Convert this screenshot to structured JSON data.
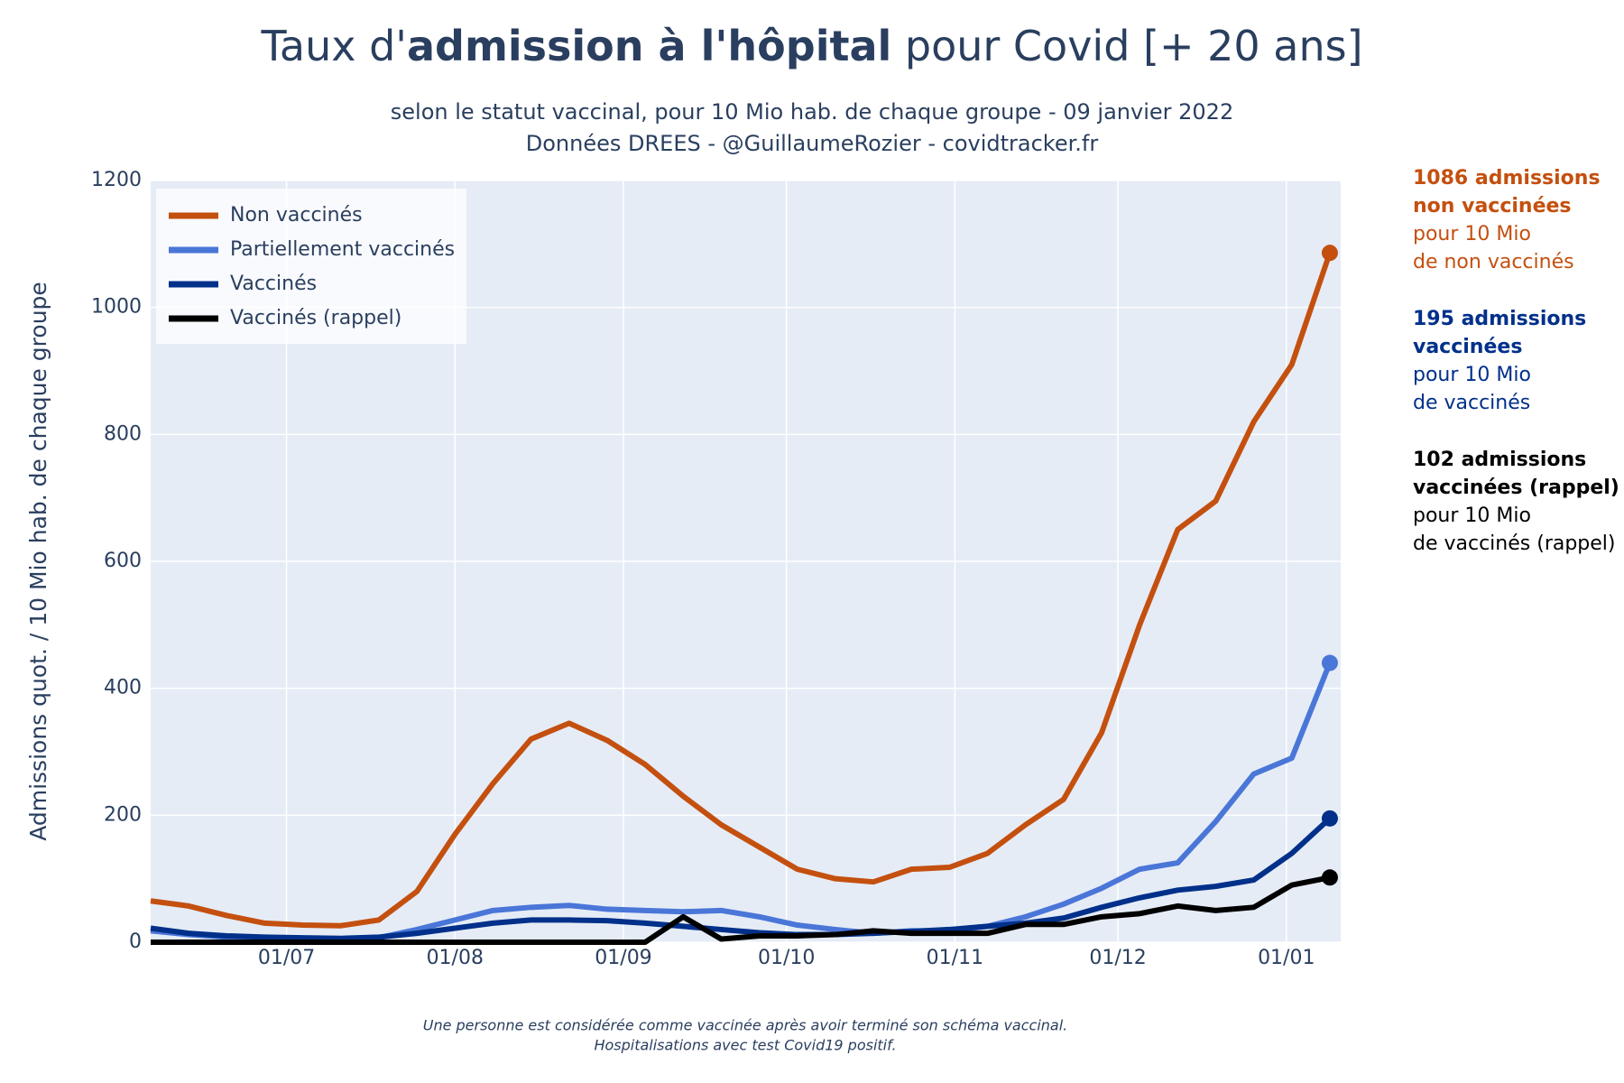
{
  "chart_data": {
    "type": "line",
    "title": [
      "Taux d'",
      "admission à l'hôpital",
      " pour Covid [+ 20 ans]"
    ],
    "subtitle": [
      "selon le statut vaccinal, pour 10 Mio hab. de chaque groupe - 09 janvier 2022",
      "Données DREES - @GuillaumeRozier - covidtracker.fr"
    ],
    "ylabel": "Admissions quot. / 10 Mio hab. de chaque groupe",
    "footnote": [
      "Une personne est considérée comme vaccinée après avoir terminé son schéma vaccinal.",
      "Hospitalisations avec test Covid19 positif."
    ],
    "x": [
      "06/06",
      "13/06",
      "20/06",
      "27/06",
      "04/07",
      "11/07",
      "18/07",
      "25/07",
      "01/08",
      "08/08",
      "15/08",
      "22/08",
      "29/08",
      "05/09",
      "12/09",
      "19/09",
      "26/09",
      "03/10",
      "10/10",
      "17/10",
      "24/10",
      "31/10",
      "07/11",
      "14/11",
      "21/11",
      "28/11",
      "05/12",
      "12/12",
      "19/12",
      "26/12",
      "02/01",
      "09/01"
    ],
    "xlim": [
      "06/06",
      "11/01"
    ],
    "xticks": [
      "01/07",
      "01/08",
      "01/09",
      "01/10",
      "01/11",
      "01/12",
      "01/01"
    ],
    "ylim": [
      0,
      1200
    ],
    "yticks": [
      0,
      200,
      400,
      600,
      800,
      1000,
      1200
    ],
    "grid": true,
    "legend": "top-left",
    "series": [
      {
        "name": "Non vaccinés",
        "color": "#c4500f",
        "values": [
          65,
          57,
          42,
          30,
          27,
          26,
          35,
          80,
          170,
          250,
          320,
          345,
          318,
          280,
          230,
          185,
          150,
          115,
          100,
          95,
          115,
          118,
          140,
          185,
          225,
          330,
          500,
          650,
          695,
          820,
          910,
          1086
        ]
      },
      {
        "name": "Partiellement vaccinés",
        "color": "#4a76d8",
        "values": [
          18,
          12,
          8,
          7,
          6,
          5,
          7,
          20,
          35,
          50,
          55,
          58,
          52,
          50,
          48,
          50,
          40,
          27,
          20,
          14,
          18,
          18,
          25,
          40,
          60,
          85,
          115,
          125,
          190,
          265,
          290,
          440
        ]
      },
      {
        "name": "Vaccinés",
        "color": "#00308a",
        "values": [
          22,
          14,
          10,
          8,
          7,
          6,
          8,
          14,
          22,
          30,
          35,
          35,
          34,
          30,
          25,
          20,
          15,
          12,
          12,
          14,
          17,
          20,
          25,
          30,
          38,
          55,
          70,
          82,
          88,
          98,
          140,
          195
        ]
      },
      {
        "name": "Vaccinés (rappel)",
        "color": "#000000",
        "values": [
          0,
          0,
          0,
          0,
          0,
          0,
          0,
          0,
          0,
          0,
          0,
          0,
          0,
          0,
          40,
          5,
          10,
          10,
          12,
          18,
          14,
          14,
          14,
          28,
          28,
          40,
          45,
          57,
          50,
          55,
          90,
          102
        ]
      }
    ],
    "annotations": [
      {
        "color": "#c4500f",
        "bold": [
          "1086 admissions",
          "non vaccinées"
        ],
        "text": [
          "pour 10 Mio",
          "de non vaccinés"
        ]
      },
      {
        "color": "#00308a",
        "bold": [
          "195 admissions",
          "vaccinées"
        ],
        "text": [
          "pour 10 Mio",
          "de vaccinés"
        ]
      },
      {
        "color": "#000000",
        "bold": [
          "102 admissions",
          "vaccinées (rappel)"
        ],
        "text": [
          "pour 10 Mio",
          "de vaccinés (rappel)"
        ]
      }
    ]
  }
}
